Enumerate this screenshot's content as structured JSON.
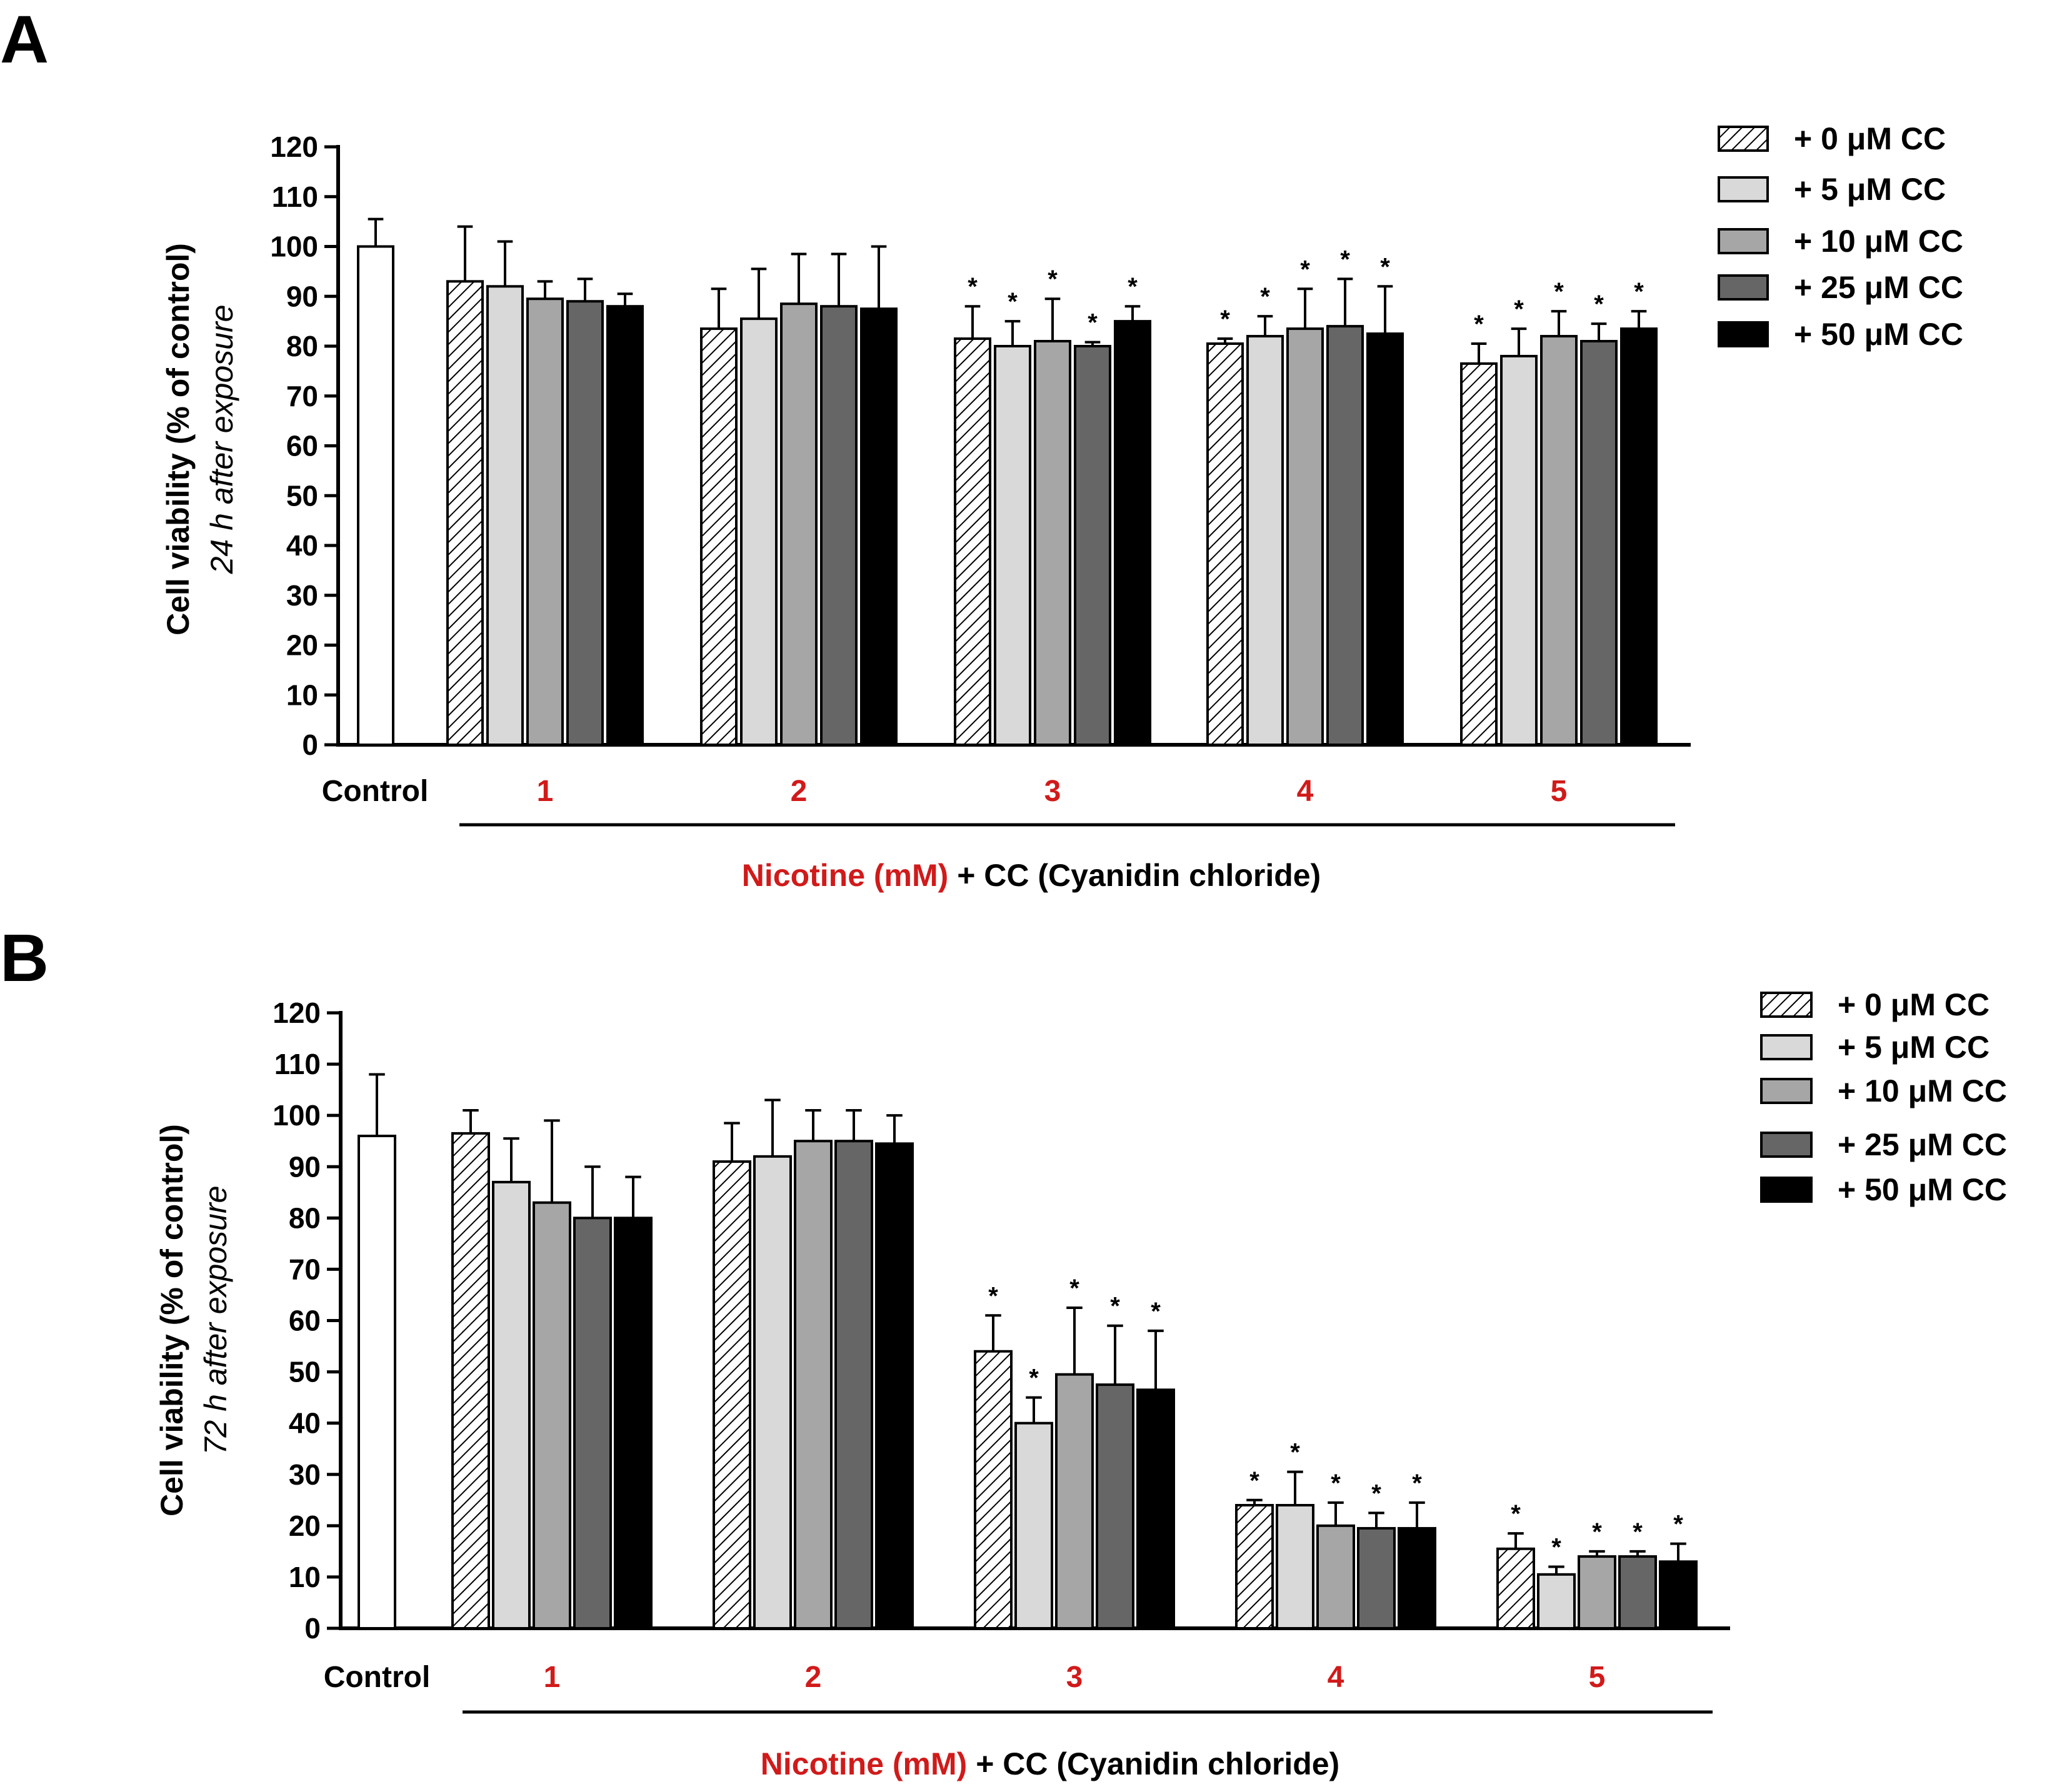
{
  "panels": [
    {
      "letter": "A",
      "ylabel": "Cell viability (% of control)",
      "ylabel_sub": "24 h after exposure",
      "xtitle_red": "Nicotine (mM)",
      "xtitle_rest": " + CC (Cyanidin chloride)"
    },
    {
      "letter": "B",
      "ylabel": "Cell viability (% of control)",
      "ylabel_sub": "72 h after exposure",
      "xtitle_red": "Nicotine (mM)",
      "xtitle_rest": " + CC (Cyanidin chloride)"
    }
  ],
  "colors": {
    "control": "#ffffff",
    "cc0_hatch": "#000000",
    "cc5": "#d9d9d9",
    "cc10": "#a6a6a6",
    "cc25": "#666666",
    "cc50": "#000000",
    "category_red": "#d11a1a"
  },
  "chart_data": [
    {
      "type": "bar",
      "panel": "A",
      "ylim": [
        0,
        120
      ],
      "yticks": [
        0,
        10,
        20,
        30,
        40,
        50,
        60,
        70,
        80,
        90,
        100,
        110,
        120
      ],
      "control": {
        "label": "Control",
        "value": 100,
        "error": 5.5
      },
      "categories": [
        "1",
        "2",
        "3",
        "4",
        "5"
      ],
      "legend_position": "top-right",
      "series": [
        {
          "name": "+ 0 μM CC",
          "fill": "hatch",
          "values": [
            93,
            83.5,
            81.5,
            80.5,
            76.5
          ],
          "errors": [
            11,
            8,
            6.5,
            1,
            4
          ],
          "significant": [
            false,
            false,
            true,
            true,
            true
          ]
        },
        {
          "name": "+ 5 μM CC",
          "fill": "#d9d9d9",
          "values": [
            92,
            85.5,
            80,
            82,
            78
          ],
          "errors": [
            9,
            10,
            5,
            4,
            5.5
          ],
          "significant": [
            false,
            false,
            true,
            true,
            true
          ]
        },
        {
          "name": "+ 10 μM CC",
          "fill": "#a6a6a6",
          "values": [
            89.5,
            88.5,
            81,
            83.5,
            82
          ],
          "errors": [
            3.5,
            10,
            8.5,
            8,
            5
          ],
          "significant": [
            false,
            false,
            true,
            true,
            true
          ]
        },
        {
          "name": "+ 25 μM CC",
          "fill": "#666666",
          "values": [
            89,
            88,
            80,
            84,
            81
          ],
          "errors": [
            4.5,
            10.5,
            0.8,
            9.5,
            3.5
          ],
          "significant": [
            false,
            false,
            true,
            true,
            true
          ]
        },
        {
          "name": "+ 50 μM CC",
          "fill": "#000000",
          "values": [
            88,
            87.5,
            85,
            82.5,
            83.5
          ],
          "errors": [
            2.5,
            12.5,
            3,
            9.5,
            3.5
          ],
          "significant": [
            false,
            false,
            true,
            true,
            true
          ]
        }
      ]
    },
    {
      "type": "bar",
      "panel": "B",
      "ylim": [
        0,
        120
      ],
      "yticks": [
        0,
        10,
        20,
        30,
        40,
        50,
        60,
        70,
        80,
        90,
        100,
        110,
        120
      ],
      "control": {
        "label": "Control",
        "value": 96,
        "error": 12
      },
      "categories": [
        "1",
        "2",
        "3",
        "4",
        "5"
      ],
      "legend_position": "top-right",
      "series": [
        {
          "name": "+ 0 μM CC",
          "fill": "hatch",
          "values": [
            96.5,
            91,
            54,
            24,
            15.5
          ],
          "errors": [
            4.5,
            7.5,
            7,
            1,
            3
          ],
          "significant": [
            false,
            false,
            true,
            true,
            true
          ]
        },
        {
          "name": "+ 5 μM CC",
          "fill": "#d9d9d9",
          "values": [
            87,
            92,
            40,
            24,
            10.5
          ],
          "errors": [
            8.5,
            11,
            5,
            6.5,
            1.5
          ],
          "significant": [
            false,
            false,
            true,
            true,
            true
          ]
        },
        {
          "name": "+ 10 μM CC",
          "fill": "#a6a6a6",
          "values": [
            83,
            95,
            49.5,
            20,
            14
          ],
          "errors": [
            16,
            6,
            13,
            4.5,
            1
          ],
          "significant": [
            false,
            false,
            true,
            true,
            true
          ]
        },
        {
          "name": "+ 25 μM CC",
          "fill": "#666666",
          "values": [
            80,
            95,
            47.5,
            19.5,
            14
          ],
          "errors": [
            10,
            6,
            11.5,
            3,
            1
          ],
          "significant": [
            false,
            false,
            true,
            true,
            true
          ]
        },
        {
          "name": "+ 50 μM CC",
          "fill": "#000000",
          "values": [
            80,
            94.5,
            46.5,
            19.5,
            13
          ],
          "errors": [
            8,
            5.5,
            11.5,
            5,
            3.5
          ],
          "significant": [
            false,
            false,
            true,
            true,
            true
          ]
        }
      ]
    }
  ]
}
